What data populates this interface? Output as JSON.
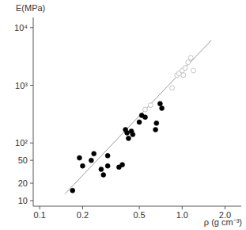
{
  "chart_data": {
    "type": "scatter",
    "x_label": "ρ (g cm⁻³)",
    "y_label": "E(MPa)",
    "log": true,
    "grid": false,
    "xlim": [
      0.09,
      2.6
    ],
    "ylim": [
      8,
      15000
    ],
    "xticks": [
      0.1,
      0.2,
      0.5,
      {
        "value": 1,
        "label": "1.0"
      },
      {
        "value": 2,
        "label": "2.0"
      }
    ],
    "yticks": [
      10,
      20,
      50,
      {
        "value": 100,
        "label": "10²"
      },
      {
        "value": 1000,
        "label": "10³"
      },
      {
        "value": 10000,
        "label": "10⁴"
      }
    ],
    "series": [
      {
        "type": "scatter",
        "marker": "filled",
        "color": "#000000",
        "x": [
          0.17,
          0.19,
          0.2,
          0.23,
          0.24,
          0.27,
          0.28,
          0.3,
          0.3,
          0.36,
          0.38,
          0.4,
          0.41,
          0.42,
          0.44,
          0.45,
          0.5,
          0.52,
          0.55,
          0.65,
          0.66,
          0.7,
          0.72
        ],
        "values": [
          15,
          55,
          40,
          50,
          65,
          35,
          28,
          60,
          40,
          38,
          42,
          170,
          150,
          120,
          160,
          140,
          230,
          300,
          280,
          170,
          220,
          480,
          400
        ]
      },
      {
        "type": "scatter",
        "marker": "open",
        "color": "#ffffff",
        "x": [
          0.55,
          0.6,
          0.85,
          0.92,
          0.95,
          1.0,
          1.02,
          1.05,
          1.1,
          1.15,
          1.2
        ],
        "values": [
          380,
          450,
          900,
          1500,
          1600,
          1800,
          1500,
          2000,
          2500,
          3000,
          1800
        ]
      },
      {
        "type": "line",
        "line_style": "solid",
        "color": "#9a9a9a",
        "x": [
          0.15,
          1.6
        ],
        "values": [
          13,
          6000
        ]
      }
    ]
  }
}
